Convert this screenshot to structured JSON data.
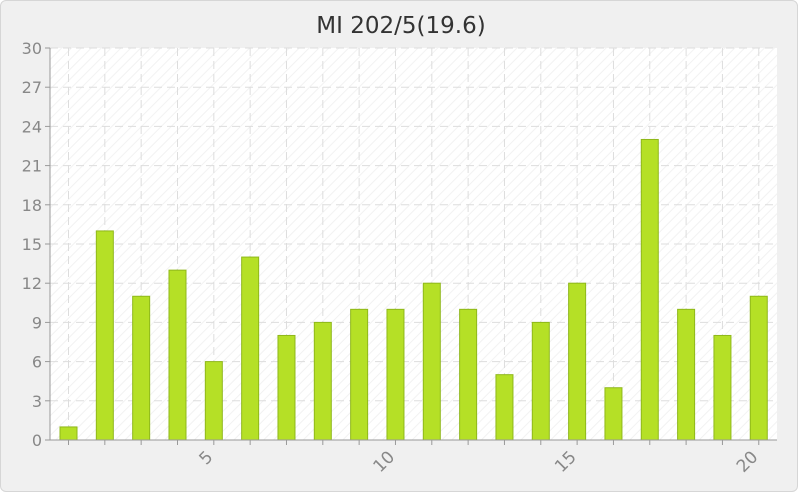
{
  "chart_data": {
    "type": "bar",
    "title": "MI 202/5(19.6)",
    "x": [
      1,
      2,
      3,
      4,
      5,
      6,
      7,
      8,
      9,
      10,
      11,
      12,
      13,
      14,
      15,
      16,
      17,
      18,
      19,
      20
    ],
    "values": [
      1,
      16,
      11,
      13,
      6,
      14,
      8,
      9,
      10,
      10,
      12,
      10,
      5,
      9,
      12,
      4,
      23,
      10,
      8,
      11
    ],
    "x_tick_labels": [
      "5",
      "10",
      "15",
      "20"
    ],
    "y_ticks": [
      0,
      3,
      6,
      9,
      12,
      15,
      18,
      21,
      24,
      27,
      30
    ],
    "ylim": [
      0,
      30
    ],
    "xlabel": "",
    "ylabel": "",
    "grid": true,
    "colors": {
      "bar": "#b5e026",
      "bar_edge": "#8fb81a",
      "grid": "#dddddd",
      "axis": "#999999"
    }
  }
}
